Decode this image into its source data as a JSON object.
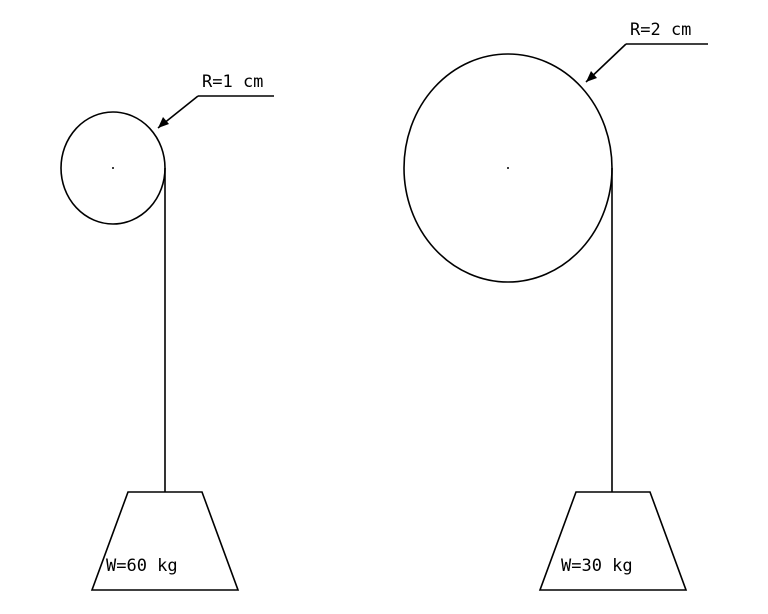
{
  "pulleys": [
    {
      "radius_label": "R=1 cm",
      "weight_label": "W=60 kg"
    },
    {
      "radius_label": "R=2 cm",
      "weight_label": "W=30 kg"
    }
  ],
  "colors": {
    "stroke": "#000000",
    "background": "#ffffff"
  }
}
